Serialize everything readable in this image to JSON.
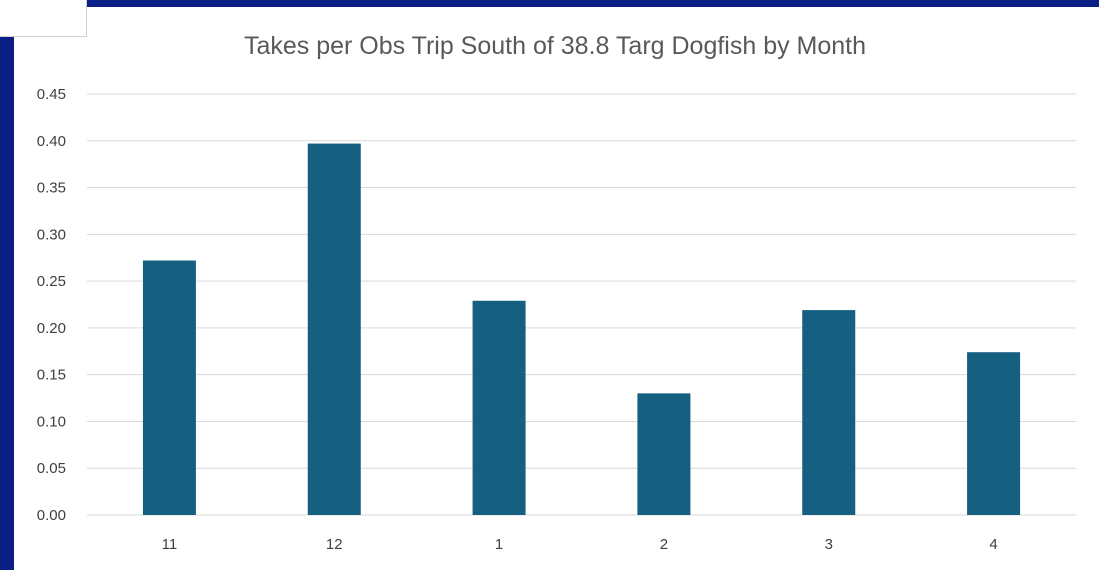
{
  "chart_data": {
    "type": "bar",
    "title": "Takes per Obs Trip South of 38.8 Targ Dogfish by Month",
    "xlabel": "",
    "ylabel": "",
    "categories": [
      "11",
      "12",
      "1",
      "2",
      "3",
      "4"
    ],
    "values": [
      0.272,
      0.397,
      0.229,
      0.13,
      0.219,
      0.174
    ],
    "ylim": [
      0,
      0.45
    ],
    "yticks": [
      "0.00",
      "0.05",
      "0.10",
      "0.15",
      "0.20",
      "0.25",
      "0.30",
      "0.35",
      "0.40",
      "0.45"
    ],
    "grid": true,
    "legend": "none",
    "bar_color": "#155f80"
  },
  "colors": {
    "frame": "#0a1f86",
    "gridline": "#d9d9d9"
  }
}
